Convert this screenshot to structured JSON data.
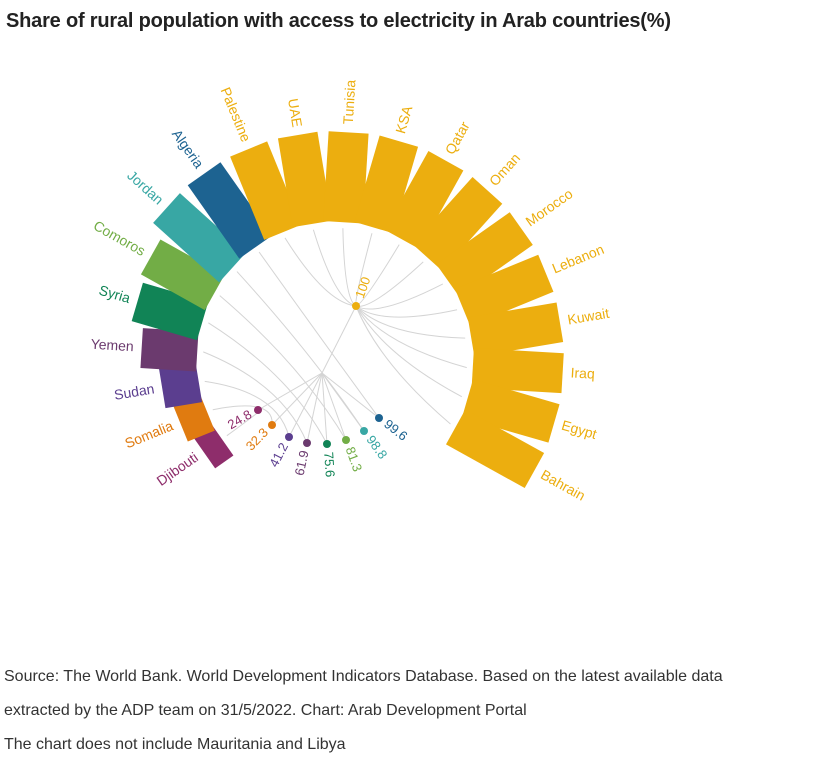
{
  "title": "Share of rural population with access to electricity in Arab countries(%)",
  "notes": [
    "Source: The World Bank. World Development Indicators Database. Based on the latest available data",
    "extracted by the ADP team on 31/5/2022. Chart: Arab Development Portal",
    "The chart does not include Mauritania and Libya"
  ],
  "chart_data": {
    "type": "bar",
    "layout": "radial",
    "xlabel": "",
    "ylabel": "",
    "categories": [
      "Djibouti",
      "Somalia",
      "Sudan",
      "Yemen",
      "Syria",
      "Comoros",
      "Jordan",
      "Algeria",
      "Palestine",
      "UAE",
      "Tunisia",
      "KSA",
      "Qatar",
      "Oman",
      "Morocco",
      "Lebanon",
      "Kuwait",
      "Iraq",
      "Egypt",
      "Bahrain"
    ],
    "values": [
      24.8,
      32.3,
      41.2,
      61.9,
      75.6,
      81.3,
      98.8,
      99.6,
      100,
      100,
      100,
      100,
      100,
      100,
      100,
      100,
      100,
      100,
      100,
      100
    ],
    "colors": [
      "#8e2d6b",
      "#e07b10",
      "#5b3e8f",
      "#6b3a6e",
      "#118456",
      "#72ad46",
      "#38a7a4",
      "#1d6391",
      "#ecae0f",
      "#ecae0f",
      "#ecae0f",
      "#ecae0f",
      "#ecae0f",
      "#ecae0f",
      "#ecae0f",
      "#ecae0f",
      "#ecae0f",
      "#ecae0f",
      "#ecae0f",
      "#ecae0f"
    ],
    "group_labels": [
      {
        "label": "24.8",
        "color": "#8e2d6b"
      },
      {
        "label": "32.3",
        "color": "#e07b10"
      },
      {
        "label": "41.2",
        "color": "#5b3e8f"
      },
      {
        "label": "61.9",
        "color": "#6b3a6e"
      },
      {
        "label": "75.6",
        "color": "#118456"
      },
      {
        "label": "81.3",
        "color": "#72ad46"
      },
      {
        "label": "98.8",
        "color": "#38a7a4"
      },
      {
        "label": "99.6",
        "color": "#1d6391"
      },
      {
        "label": "100",
        "color": "#ecae0f"
      }
    ]
  }
}
